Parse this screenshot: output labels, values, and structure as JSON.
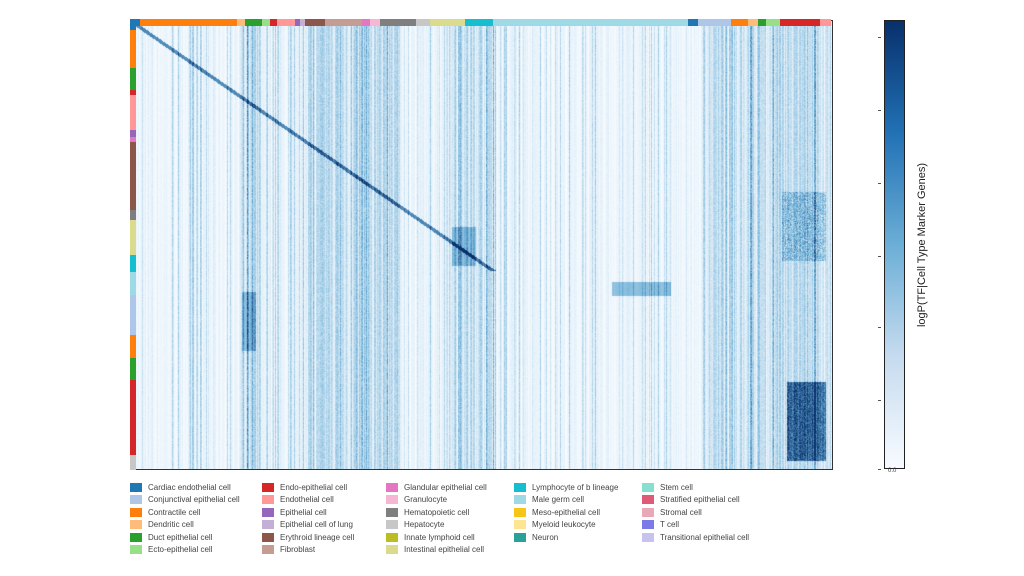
{
  "chart_data": {
    "type": "heatmap",
    "title": "",
    "xlabel": "",
    "ylabel": "",
    "colorbar": {
      "label": "logP(TF|Cell Type Marker Genes)",
      "colormap": "Blues",
      "min_tick_label": "0.0",
      "low_color": "#f7fbff",
      "high_color": "#08306b"
    },
    "legend": [
      {
        "name": "Cardiac endothelial cell",
        "color": "#1f77b4"
      },
      {
        "name": "Conjunctival epithelial cell",
        "color": "#aec7e8"
      },
      {
        "name": "Contractile cell",
        "color": "#ff7f0e"
      },
      {
        "name": "Dendritic cell",
        "color": "#ffbb78"
      },
      {
        "name": "Duct epithelial cell",
        "color": "#2ca02c"
      },
      {
        "name": "Ecto-epithelial cell",
        "color": "#98df8a"
      },
      {
        "name": "Endo-epithelial cell",
        "color": "#d62728"
      },
      {
        "name": "Endothelial cell",
        "color": "#ff9896"
      },
      {
        "name": "Epithelial cell",
        "color": "#9467bd"
      },
      {
        "name": "Epithelial cell of lung",
        "color": "#c5b0d5"
      },
      {
        "name": "Erythroid lineage cell",
        "color": "#8c564b"
      },
      {
        "name": "Fibroblast",
        "color": "#c49c94"
      },
      {
        "name": "Glandular epithelial cell",
        "color": "#e377c2"
      },
      {
        "name": "Granulocyte",
        "color": "#f7b6d2"
      },
      {
        "name": "Hematopoietic cell",
        "color": "#7f7f7f"
      },
      {
        "name": "Hepatocyte",
        "color": "#c7c7c7"
      },
      {
        "name": "Innate lymphoid cell",
        "color": "#bcbd22"
      },
      {
        "name": "Intestinal epithelial cell",
        "color": "#dbdb8d"
      },
      {
        "name": "Lymphocyte of b lineage",
        "color": "#17becf"
      },
      {
        "name": "Male germ cell",
        "color": "#9edae5"
      },
      {
        "name": "Meso-epithelial cell",
        "color": "#f5c518"
      },
      {
        "name": "Myeloid leukocyte",
        "color": "#fde591"
      },
      {
        "name": "Neuron",
        "color": "#2aa198"
      },
      {
        "name": "Stem cell",
        "color": "#86e0d0"
      },
      {
        "name": "Stratified epithelial cell",
        "color": "#e05a78"
      },
      {
        "name": "Stromal cell",
        "color": "#e8a8b8"
      },
      {
        "name": "T cell",
        "color": "#7b7be8"
      },
      {
        "name": "Transitional epithelial cell",
        "color": "#c8c3ee"
      }
    ],
    "column_groups": [
      "Cardiac endothelial cell",
      "Contractile cell",
      "Dendritic cell",
      "Duct epithelial cell",
      "Ecto-epithelial cell",
      "Endo-epithelial cell",
      "Endothelial cell",
      "Epithelial cell",
      "Epithelial cell of lung",
      "Erythroid lineage cell",
      "Fibroblast",
      "Glandular epithelial cell",
      "Granulocyte",
      "Hematopoietic cell",
      "Hepatocyte",
      "Intestinal epithelial cell",
      "Lymphocyte of b lineage",
      "Male germ cell",
      "Cardiac endothelial cell",
      "Conjunctival epithelial cell",
      "Contractile cell",
      "Dendritic cell",
      "Duct epithelial cell",
      "Ecto-epithelial cell",
      "Endo-epithelial cell",
      "Endothelial cell"
    ],
    "row_groups": [
      "Cardiac endothelial cell",
      "Contractile cell",
      "Duct epithelial cell",
      "Endo-epithelial cell",
      "Endothelial cell",
      "Epithelial cell",
      "Glandular epithelial cell",
      "Erythroid lineage cell",
      "Hematopoietic cell",
      "Intestinal epithelial cell",
      "Lymphocyte of b lineage",
      "Male germ cell",
      "Conjunctival epithelial cell",
      "Contractile cell",
      "Duct epithelial cell",
      "Endo-epithelial cell",
      "Hepatocyte"
    ]
  }
}
